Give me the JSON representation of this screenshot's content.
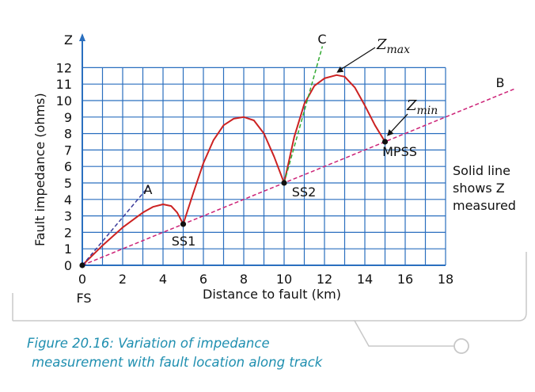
{
  "chart_data": {
    "type": "line",
    "x_axis": {
      "label": "Distance to fault (km)",
      "range": [
        0,
        18
      ],
      "ticks": [
        0,
        2,
        4,
        6,
        8,
        10,
        12,
        14,
        16,
        18
      ],
      "grid_step": 1
    },
    "y_axis": {
      "label": "Fault impedance (ohms)",
      "symbol": "Z",
      "range": [
        0,
        12
      ],
      "ticks": [
        0,
        1,
        2,
        3,
        4,
        5,
        6,
        7,
        8,
        9,
        10,
        11,
        12
      ]
    },
    "grid": true,
    "series": [
      {
        "name": "Z measured",
        "style": "solid",
        "color": "#cc2222",
        "points": [
          [
            0,
            0
          ],
          [
            1,
            1.2
          ],
          [
            2,
            2.3
          ],
          [
            3,
            3.2
          ],
          [
            3.5,
            3.55
          ],
          [
            4,
            3.7
          ],
          [
            4.4,
            3.6
          ],
          [
            4.7,
            3.2
          ],
          [
            5,
            2.5
          ],
          [
            5.5,
            4.4
          ],
          [
            6,
            6.2
          ],
          [
            6.5,
            7.6
          ],
          [
            7,
            8.5
          ],
          [
            7.5,
            8.9
          ],
          [
            8,
            9.0
          ],
          [
            8.5,
            8.8
          ],
          [
            9,
            8.0
          ],
          [
            9.5,
            6.6
          ],
          [
            10,
            5.0
          ],
          [
            10.5,
            7.8
          ],
          [
            11,
            9.8
          ],
          [
            11.5,
            10.9
          ],
          [
            12,
            11.35
          ],
          [
            12.6,
            11.55
          ],
          [
            13,
            11.45
          ],
          [
            13.5,
            10.8
          ],
          [
            14,
            9.7
          ],
          [
            14.5,
            8.5
          ],
          [
            15,
            7.5
          ]
        ]
      },
      {
        "name": "B",
        "style": "dashed",
        "color": "#cc2277",
        "points": [
          [
            0,
            0
          ],
          [
            21.4,
            10.7
          ]
        ]
      },
      {
        "name": "A",
        "style": "dashed",
        "color": "#3a3a9a",
        "points": [
          [
            0,
            0
          ],
          [
            3.3,
            4.8
          ]
        ]
      },
      {
        "name": "C",
        "style": "dashed",
        "color": "#33aa33",
        "points": [
          [
            10,
            5
          ],
          [
            11.9,
            13.3
          ]
        ]
      }
    ],
    "markers": [
      {
        "label": "FS",
        "x": 0,
        "y": 0
      },
      {
        "label": "SS1",
        "x": 5,
        "y": 2.5
      },
      {
        "label": "SS2",
        "x": 10,
        "y": 5
      },
      {
        "label": "MPSS",
        "x": 15,
        "y": 7.5
      }
    ],
    "annotations": {
      "zmax": {
        "base": "Z",
        "sub": "max",
        "x": 12.6,
        "y": 11.55
      },
      "zmin": {
        "base": "Z",
        "sub": "min",
        "x": 15.1,
        "y": 7.7
      },
      "note": [
        "Solid line",
        "shows Z",
        "measured"
      ]
    }
  },
  "caption": {
    "line1": "Figure 20.16: Variation of impedance",
    "line2": "measurement with fault location along track"
  },
  "colors": {
    "grid": "#2a6fbf",
    "caption": "#1f8fb0",
    "frame": "#c8c8c8"
  }
}
